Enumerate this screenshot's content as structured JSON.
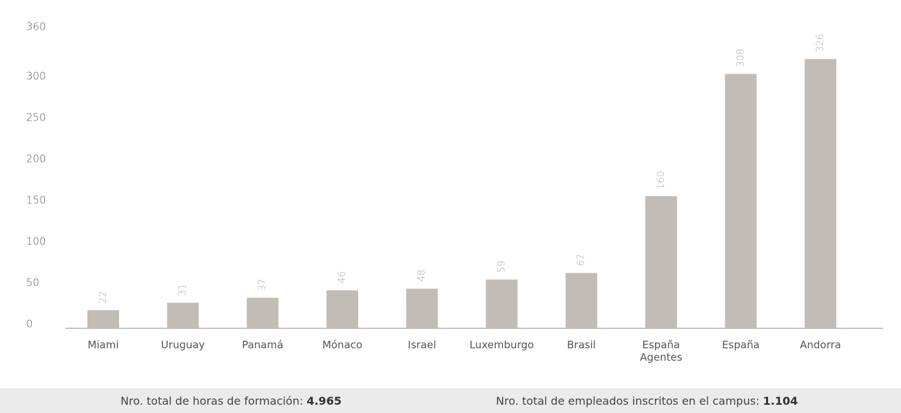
{
  "chart_data": {
    "type": "bar",
    "categories": [
      "Miami",
      "Uruguay",
      "Panamá",
      "Mónaco",
      "Israel",
      "Luxemburgo",
      "Brasil",
      "España\nAgentes",
      "España",
      "Andorra"
    ],
    "values": [
      22,
      31,
      37,
      46,
      48,
      59,
      67,
      160,
      308,
      326
    ],
    "color": "#c1bcb5",
    "ylim": [
      0,
      360
    ],
    "yticks": [
      0,
      50,
      100,
      150,
      200,
      250,
      300,
      360
    ],
    "grid": false
  },
  "footer": [
    {
      "label": "Nro. total de horas de formación:",
      "value": "4.965"
    },
    {
      "label": "Nro. total de empleados inscritos en el campus:",
      "value": "1.104"
    }
  ]
}
